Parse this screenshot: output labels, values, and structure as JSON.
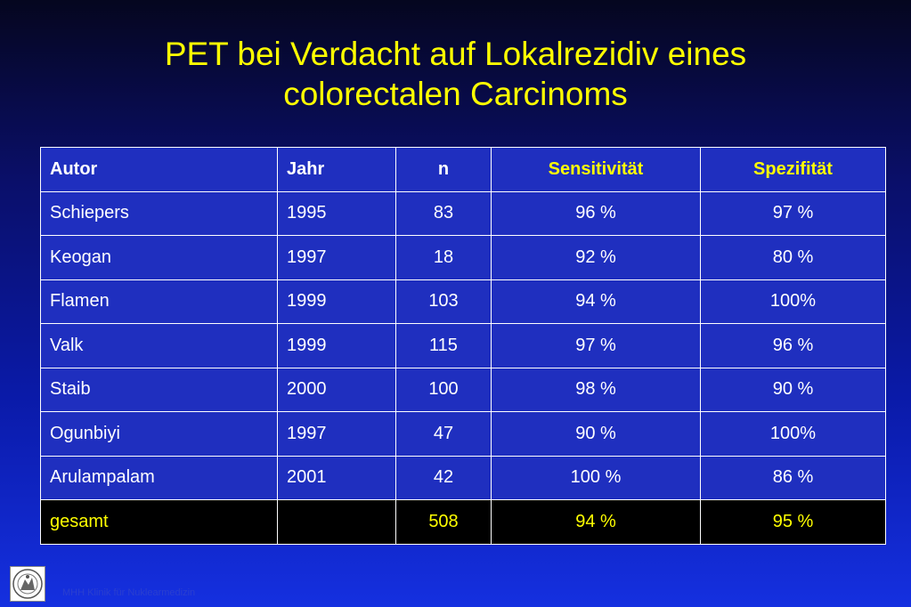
{
  "title": {
    "line1": "PET bei Verdacht auf Lokalrezidiv eines",
    "line2": "colorectalen Carcinoms"
  },
  "table": {
    "headers": {
      "autor": "Autor",
      "jahr": "Jahr",
      "n": "n",
      "sensitivitaet": "Sensitivität",
      "spezifitaet": "Spezifität"
    },
    "rows": [
      {
        "autor": "Schiepers",
        "jahr": "1995",
        "n": "83",
        "sens": "96 %",
        "spez": "97 %"
      },
      {
        "autor": "Keogan",
        "jahr": "1997",
        "n": "18",
        "sens": "92 %",
        "spez": "80 %"
      },
      {
        "autor": "Flamen",
        "jahr": "1999",
        "n": "103",
        "sens": "94 %",
        "spez": "100%"
      },
      {
        "autor": "Valk",
        "jahr": "1999",
        "n": "115",
        "sens": "97 %",
        "spez": "96 %"
      },
      {
        "autor": "Staib",
        "jahr": "2000",
        "n": "100",
        "sens": "98 %",
        "spez": "90 %"
      },
      {
        "autor": "Ogunbiyi",
        "jahr": "1997",
        "n": "47",
        "sens": "90 %",
        "spez": "100%"
      },
      {
        "autor": "Arulampalam",
        "jahr": "2001",
        "n": "42",
        "sens": "100 %",
        "spez": "86 %"
      }
    ],
    "total": {
      "autor": "gesamt",
      "jahr": "",
      "n": "508",
      "sens": "94 %",
      "spez": "95 %"
    }
  },
  "footer": {
    "text": "MHH  Klinik für Nuklearmedizin"
  },
  "colors": {
    "title": "#ffff00",
    "highlight": "#ffff00",
    "cell_text": "#ffffff",
    "total_background": "#000000"
  }
}
